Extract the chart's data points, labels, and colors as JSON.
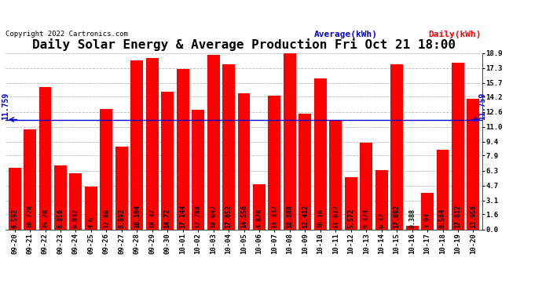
{
  "title": "Daily Solar Energy & Average Production Fri Oct 21 18:00",
  "copyright": "Copyright 2022 Cartronics.com",
  "categories": [
    "09-20",
    "09-21",
    "09-22",
    "09-23",
    "09-24",
    "09-25",
    "09-26",
    "09-27",
    "09-28",
    "09-29",
    "09-30",
    "10-01",
    "10-02",
    "10-03",
    "10-04",
    "10-05",
    "10-06",
    "10-07",
    "10-08",
    "10-09",
    "10-10",
    "10-11",
    "10-12",
    "10-13",
    "10-14",
    "10-15",
    "10-16",
    "10-17",
    "10-18",
    "10-19",
    "10-20"
  ],
  "values": [
    6.592,
    10.728,
    15.28,
    6.856,
    6.032,
    4.6,
    12.86,
    8.892,
    18.104,
    18.32,
    14.72,
    17.144,
    12.788,
    18.692,
    17.652,
    14.556,
    4.828,
    14.332,
    18.888,
    12.412,
    16.16,
    11.612,
    5.572,
    9.324,
    6.32,
    17.692,
    0.388,
    3.94,
    8.564,
    17.812,
    13.956
  ],
  "average": 11.759,
  "bar_color": "#ff0000",
  "average_color": "#0000cc",
  "background_color": "#ffffff",
  "grid_color": "#bbbbbb",
  "ylim": [
    0,
    18.9
  ],
  "yticks": [
    0.0,
    1.6,
    3.1,
    4.7,
    6.3,
    7.9,
    9.4,
    11.0,
    12.6,
    14.2,
    15.7,
    17.3,
    18.9
  ],
  "title_fontsize": 11.5,
  "bar_label_fontsize": 6.0,
  "tick_fontsize": 6.5,
  "avg_label_fontsize": 7.0,
  "copyright_fontsize": 6.5,
  "legend_fontsize": 8.0,
  "legend_avg_color": "#0000cc",
  "legend_daily_color": "#ff0000"
}
